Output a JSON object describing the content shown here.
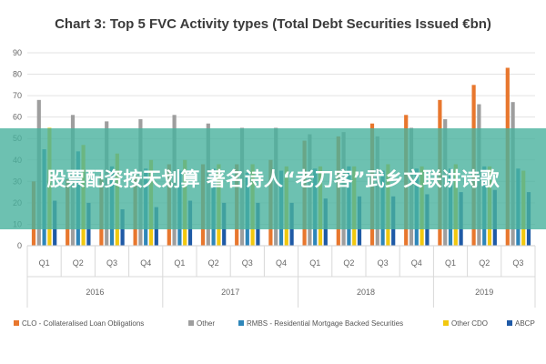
{
  "chart_data": {
    "type": "bar",
    "title": "Chart 3: Top 5 FVC Activity types (Total Debt Securities Issued €bn)",
    "ylim": [
      0,
      90
    ],
    "yticks": [
      0,
      10,
      20,
      30,
      40,
      50,
      60,
      70,
      80,
      90
    ],
    "grid": true,
    "legend_position": "bottom",
    "categories": [
      "Q1",
      "Q2",
      "Q3",
      "Q4",
      "Q1",
      "Q2",
      "Q3",
      "Q4",
      "Q1",
      "Q2",
      "Q3",
      "Q4",
      "Q1",
      "Q2",
      "Q3"
    ],
    "years": [
      {
        "label": "2016",
        "quarters": 4
      },
      {
        "label": "2017",
        "quarters": 4
      },
      {
        "label": "2018",
        "quarters": 4
      },
      {
        "label": "2019",
        "quarters": 3
      }
    ],
    "series": [
      {
        "name": "CLO - Collateralised Loan Obligations",
        "color": "#e8772e",
        "values": [
          30,
          31,
          33,
          33,
          38,
          38,
          38,
          40,
          49,
          51,
          57,
          61,
          68,
          75,
          83
        ]
      },
      {
        "name": "Other",
        "color": "#9e9e9e",
        "values": [
          68,
          61,
          58,
          59,
          61,
          57,
          55,
          55,
          52,
          53,
          51,
          55,
          59,
          66,
          67
        ]
      },
      {
        "name": "RMBS - Residential Mortgage Backed Securities",
        "color": "#2e86b9",
        "values": [
          45,
          44,
          37,
          36,
          35,
          36,
          34,
          35,
          36,
          37,
          35,
          36,
          36,
          37,
          36
        ]
      },
      {
        "name": "Other CDO",
        "color": "#f2c80f",
        "values": [
          55,
          47,
          43,
          40,
          40,
          38,
          38,
          37,
          37,
          37,
          38,
          37,
          38,
          37,
          35
        ]
      },
      {
        "name": "ABCP",
        "color": "#1f5aa6",
        "values": [
          21,
          20,
          17,
          18,
          21,
          20,
          20,
          20,
          22,
          23,
          23,
          24,
          25,
          26,
          25
        ]
      }
    ]
  },
  "banner": {
    "text": "股票配资按天划算 著名诗人“老刀客”武乡文联讲诗歌"
  }
}
